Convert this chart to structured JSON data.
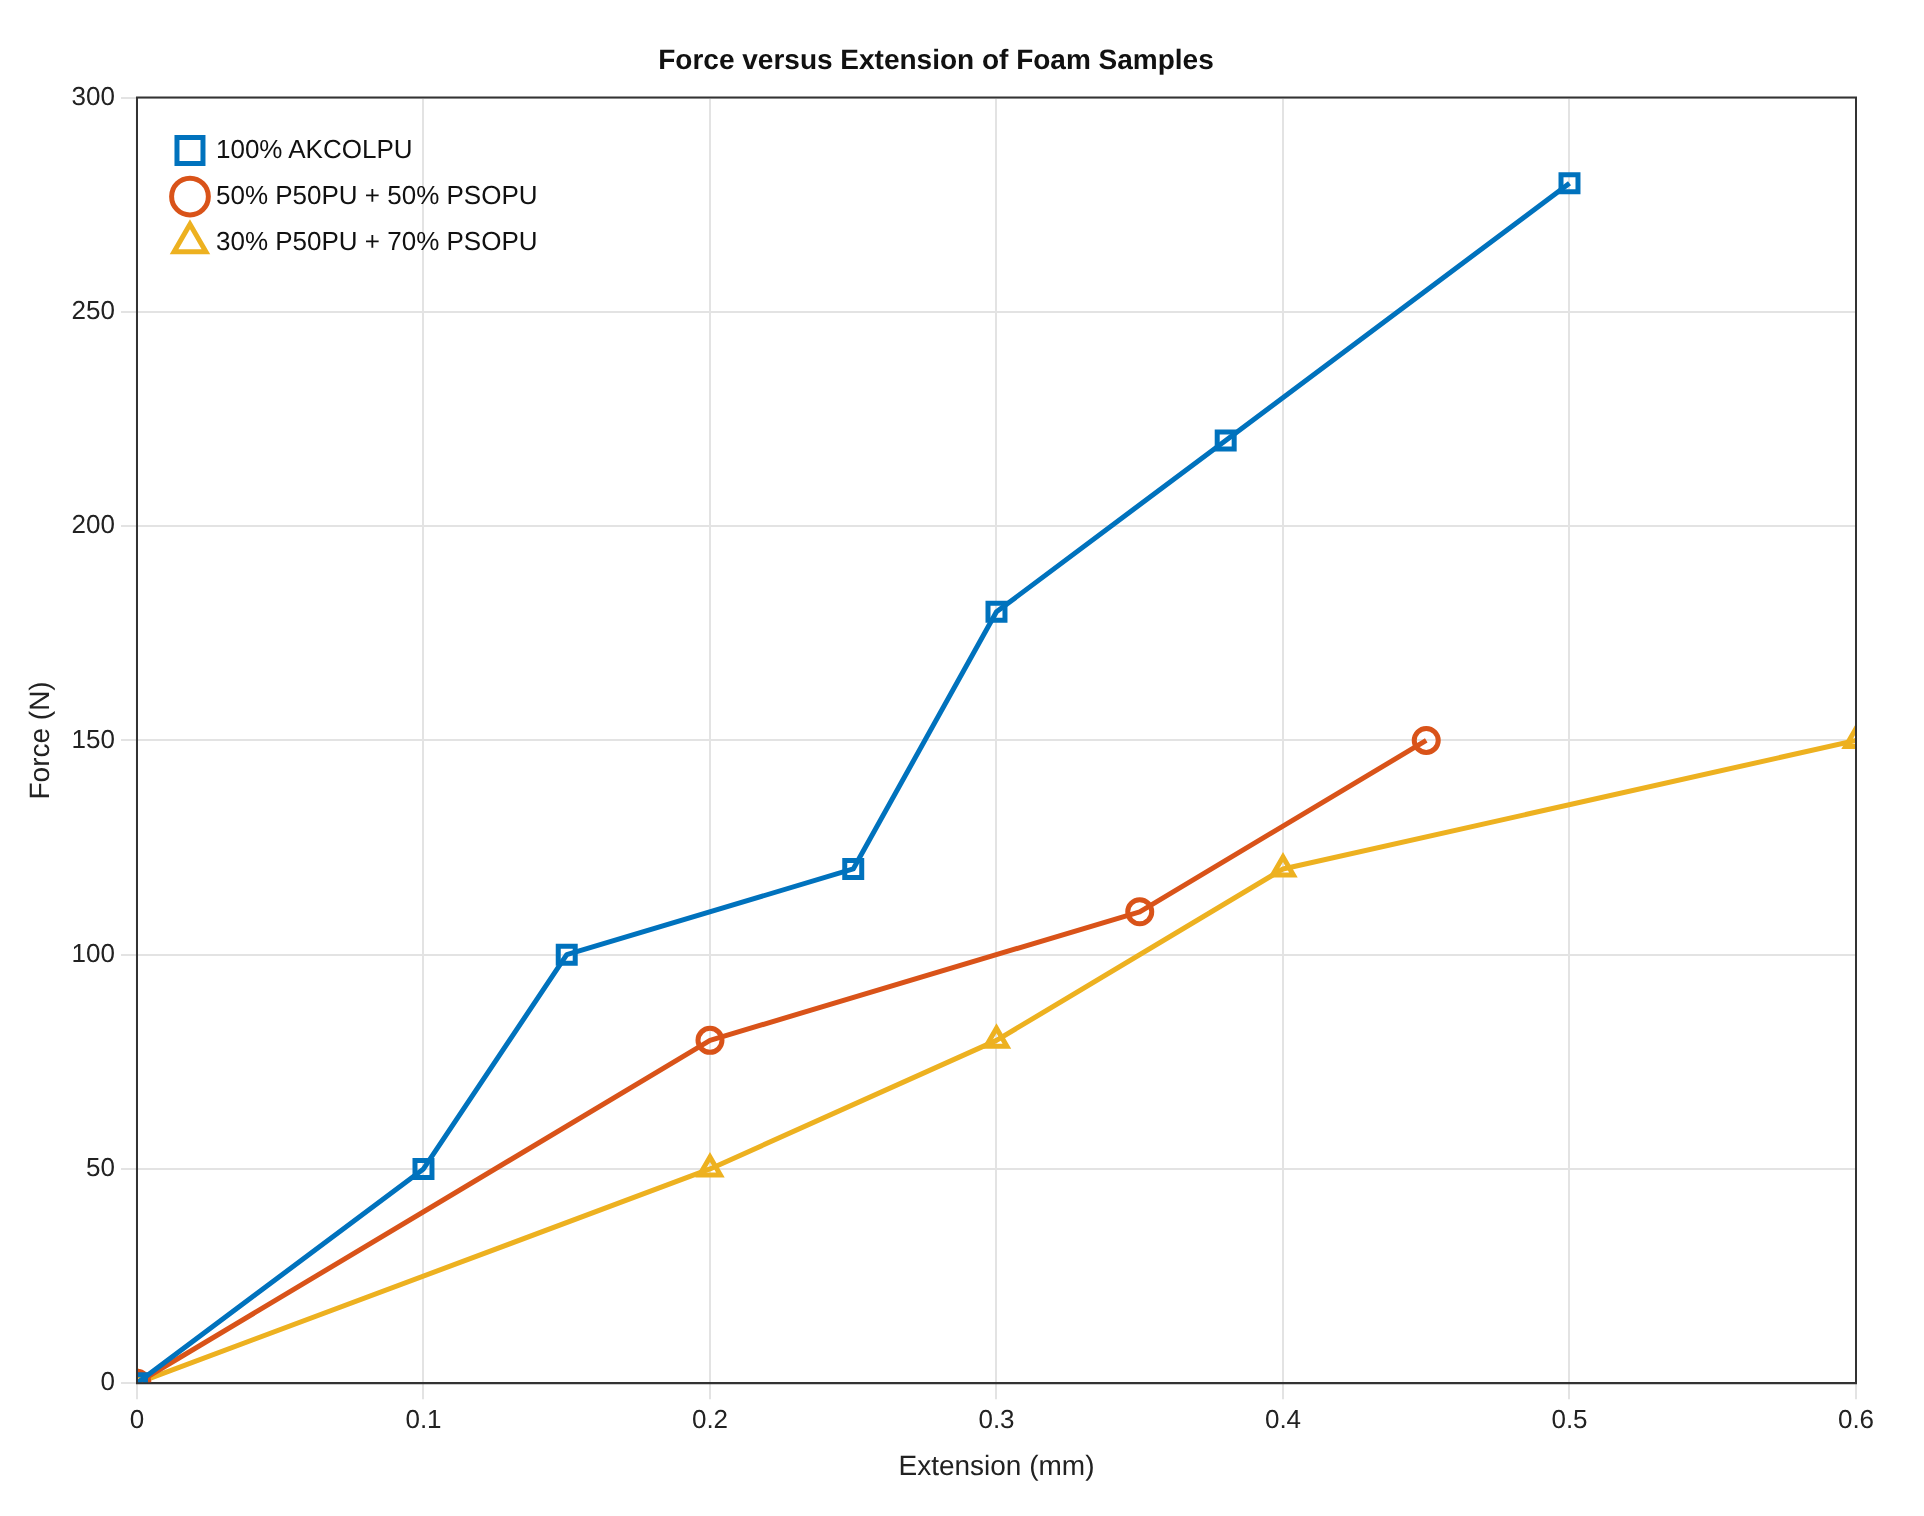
{
  "chart_data": {
    "type": "line",
    "title": "Force versus Extension of Foam Samples",
    "xlabel": "Extension (mm)",
    "ylabel": "Force (N)",
    "xlim": [
      0,
      0.6
    ],
    "xticks": [
      0,
      0.1,
      0.2,
      0.3,
      0.4,
      0.5,
      0.6
    ],
    "ylim": [
      0,
      300
    ],
    "yticks": [
      0,
      50,
      100,
      150,
      200,
      250,
      300
    ],
    "grid": true,
    "legend": "top left",
    "line_style": "solid",
    "series": [
      {
        "name": "100% AKCOLPU",
        "color": "#0072bd",
        "marker": "square",
        "x": [
          0,
          0.1,
          0.15,
          0.25,
          0.3,
          0.38,
          0.5
        ],
        "values": [
          0,
          50,
          100,
          120,
          180,
          220,
          280
        ]
      },
      {
        "name": "50% P50PU + 50% PSOPU",
        "color": "#d95319",
        "marker": "circle",
        "x": [
          0,
          0.2,
          0.35,
          0.45
        ],
        "values": [
          0,
          80,
          110,
          150
        ]
      },
      {
        "name": "30% P50PU + 70% PSOPU",
        "color": "#edb120",
        "marker": "triangle",
        "x": [
          0,
          0.2,
          0.3,
          0.4,
          0.6
        ],
        "values": [
          0,
          50,
          80,
          120,
          150
        ]
      }
    ]
  }
}
